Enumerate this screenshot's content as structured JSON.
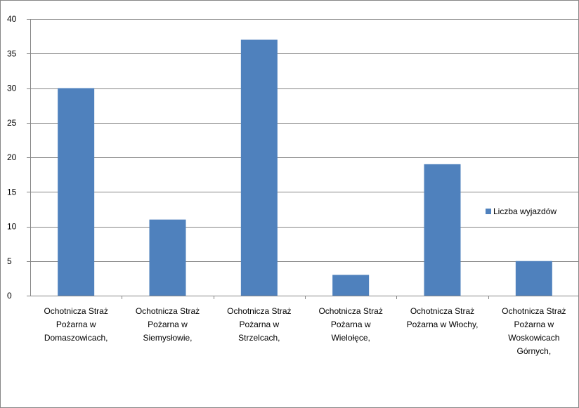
{
  "chart_data": {
    "type": "bar",
    "categories": [
      [
        "Ochotnicza Straż",
        "Pożarna w",
        "Domaszowicach,"
      ],
      [
        "Ochotnicza Straż",
        "Pożarna w",
        "Siemysłowie,"
      ],
      [
        "Ochotnicza Straż",
        "Pożarna w",
        "Strzelcach,"
      ],
      [
        "Ochotnicza Straż",
        "Pożarna w",
        "Wielołęce,"
      ],
      [
        "Ochotnicza Straż",
        "Pożarna w Włochy,"
      ],
      [
        "Ochotnicza Straż",
        "Pożarna w",
        "Woskowicach",
        "Górnych,"
      ]
    ],
    "series": [
      {
        "name": "Liczba wyjazdów",
        "values": [
          30,
          11,
          37,
          3,
          19,
          5
        ],
        "color": "#4F81BD"
      }
    ],
    "ylim": [
      0,
      40
    ],
    "yticks": [
      0,
      5,
      10,
      15,
      20,
      25,
      30,
      35,
      40
    ],
    "grid": true,
    "legend": "right",
    "gridColor": "#868686",
    "title": "",
    "xlabel": "",
    "ylabel": ""
  }
}
